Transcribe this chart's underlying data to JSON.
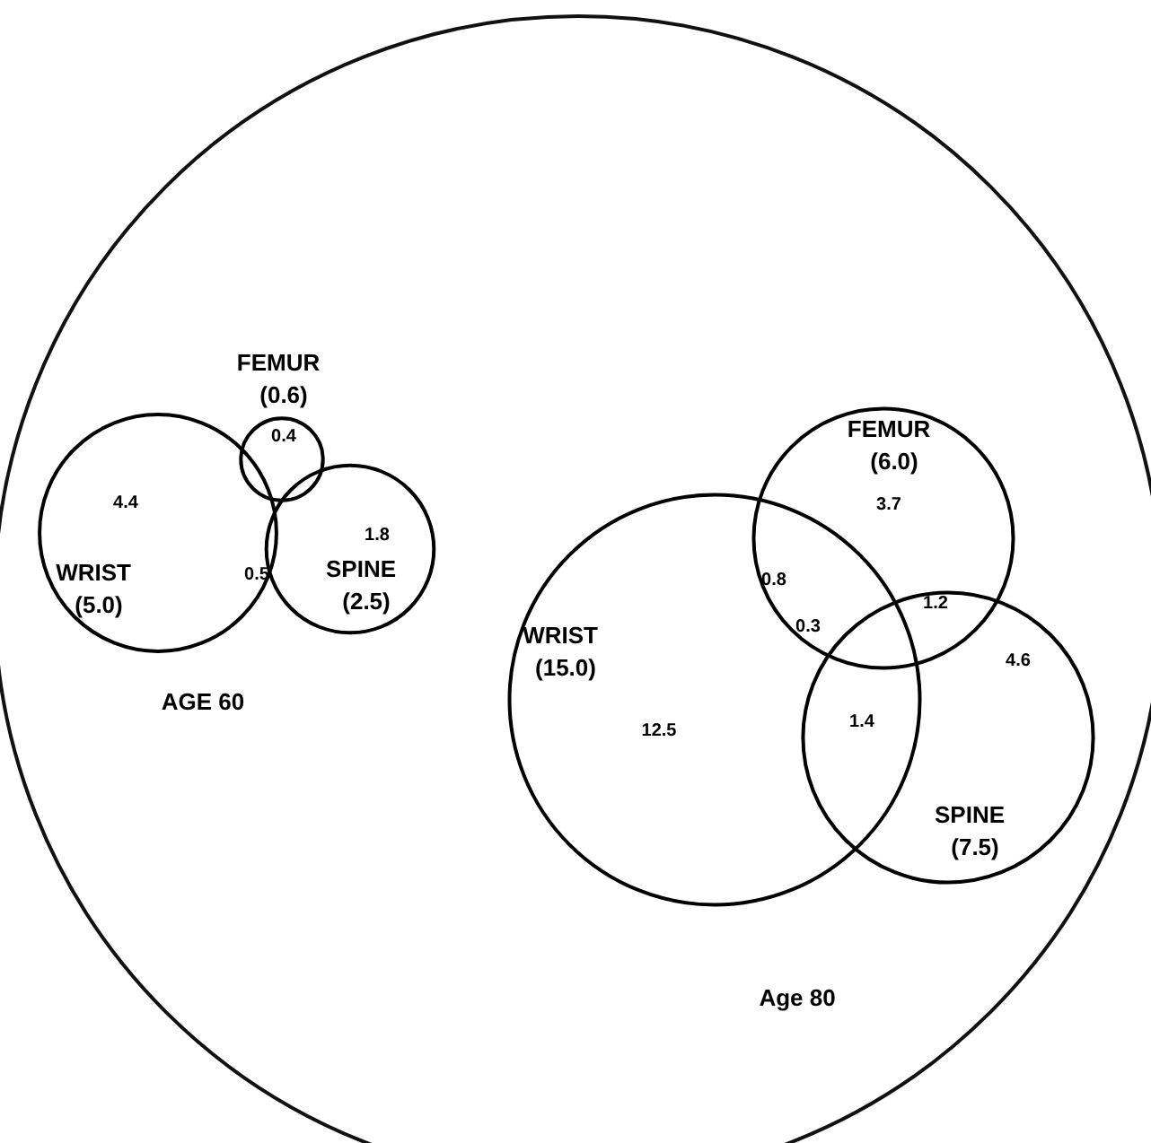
{
  "chart_data": [
    {
      "type": "other",
      "title": "AGE 60",
      "categories": [
        "WRIST",
        "FEMUR",
        "SPINE"
      ],
      "values": [
        5.0,
        0.6,
        2.5
      ],
      "value_labels": [
        "(5.0)",
        "(0.6)",
        "(2.5)"
      ],
      "color": "#000000",
      "annotations": [
        "4.4",
        "0.4",
        "1.8",
        "0.5"
      ]
    },
    {
      "type": "other",
      "title": "Age 80",
      "categories": [
        "WRIST",
        "FEMUR",
        "SPINE"
      ],
      "values": [
        15.0,
        6.0,
        7.5
      ],
      "value_labels": [
        "(15.0)",
        "(6.0)",
        "(7.5)"
      ],
      "color": "#000000",
      "annotations": [
        "3.7",
        "0.8",
        "1.2",
        "0.3",
        "12.5",
        "1.4",
        "4.6"
      ]
    }
  ]
}
